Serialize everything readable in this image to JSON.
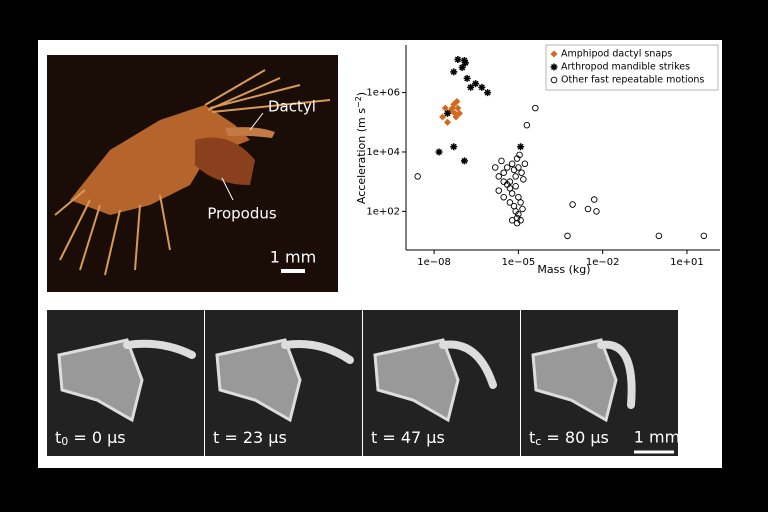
{
  "chart_data": {
    "type": "scatter",
    "xlabel": "Mass (kg)",
    "ylabel": "Acceleration (m s",
    "ylabel_sup": "−2",
    "ylabel_end": ")",
    "log_x": true,
    "log_y": true,
    "xlim": [
      1e-09,
      150
    ],
    "ylim": [
      5,
      40000000
    ],
    "xticks": [
      {
        "value": 1e-08,
        "label": "1e−08"
      },
      {
        "value": 1e-05,
        "label": "1e−05"
      },
      {
        "value": 0.01,
        "label": "1e−02"
      },
      {
        "value": 10,
        "label": "1e+01"
      }
    ],
    "yticks": [
      {
        "value": 100,
        "label": "1e+02"
      },
      {
        "value": 10000,
        "label": "1e+04"
      },
      {
        "value": 1000000,
        "label": "1e+06"
      }
    ],
    "legend": "upper right",
    "series": [
      {
        "name": "Amphipod dactyl snaps",
        "marker": "diamond",
        "color": "#d2691e",
        "x": [
          2e-08,
          2.5e-08,
          3e-08,
          4e-08,
          5e-08,
          5.5e-08,
          6e-08,
          7e-08,
          8e-08,
          4.5e-08,
          6.5e-08
        ],
        "values": [
          150000,
          300000,
          100000,
          250000,
          400000,
          200000,
          150000,
          300000,
          200000,
          300000,
          500000
        ]
      },
      {
        "name": "Arthropod mandible strikes",
        "marker": "star",
        "color": "#000000",
        "x": [
          7e-08,
          1.3e-07,
          5e-08,
          1.5e-07,
          2e-07,
          3e-07,
          5e-07,
          8e-07,
          1e-07,
          1.2e-07,
          1.5e-08,
          5e-08,
          1.2e-07,
          3e-08,
          1.2e-05
        ],
        "values": [
          13000000,
          10000000,
          5000000,
          3000000,
          1500000,
          2000000,
          1500000,
          1000000,
          7000000,
          12000000,
          10000,
          15000,
          5000,
          200000,
          15000
        ]
      },
      {
        "name": "Other fast repeatable motions",
        "marker": "circle",
        "color": "#000000",
        "x": [
          2.6e-09,
          2e-05,
          4e-05,
          0.00056,
          0.00085,
          0.003,
          0.005,
          0.006,
          1,
          40,
          1.5e-06,
          2e-06,
          2.5e-06,
          3e-06,
          4e-06,
          5e-06,
          6e-06,
          7e-06,
          8e-06,
          9e-06,
          1e-05,
          1.1e-05,
          1.3e-05,
          1.5e-05,
          1.7e-05,
          2e-06,
          3e-06,
          4e-06,
          5e-06,
          6e-06,
          7e-06,
          8e-06,
          9e-06,
          1e-05,
          1.2e-05,
          1.4e-05,
          3e-06,
          5e-06,
          8e-06,
          1e-05,
          1.2e-05,
          6e-06,
          9e-06
        ],
        "values": [
          1500,
          80000,
          300000,
          15,
          170,
          120,
          250,
          100,
          15,
          15,
          3000,
          1500,
          5000,
          2000,
          3000,
          1000,
          4000,
          2500,
          1500,
          6000,
          3000,
          8000,
          2000,
          1200,
          4000,
          500,
          300,
          800,
          200,
          400,
          150,
          100,
          60,
          80,
          50,
          120,
          1000,
          600,
          700,
          300,
          200,
          50,
          40
        ]
      }
    ]
  },
  "photo": {
    "dactyl": "Dactyl",
    "propodus": "Propodus",
    "scale": "1 mm"
  },
  "frames": [
    {
      "main": "t",
      "sub": "0",
      "rest": " = 0 μs"
    },
    {
      "main": "t = 23 μs"
    },
    {
      "main": "t = 47 μs"
    },
    {
      "main": "t",
      "sub": "c",
      "rest": " = 80 μs"
    }
  ],
  "frames_scale": "1 mm"
}
